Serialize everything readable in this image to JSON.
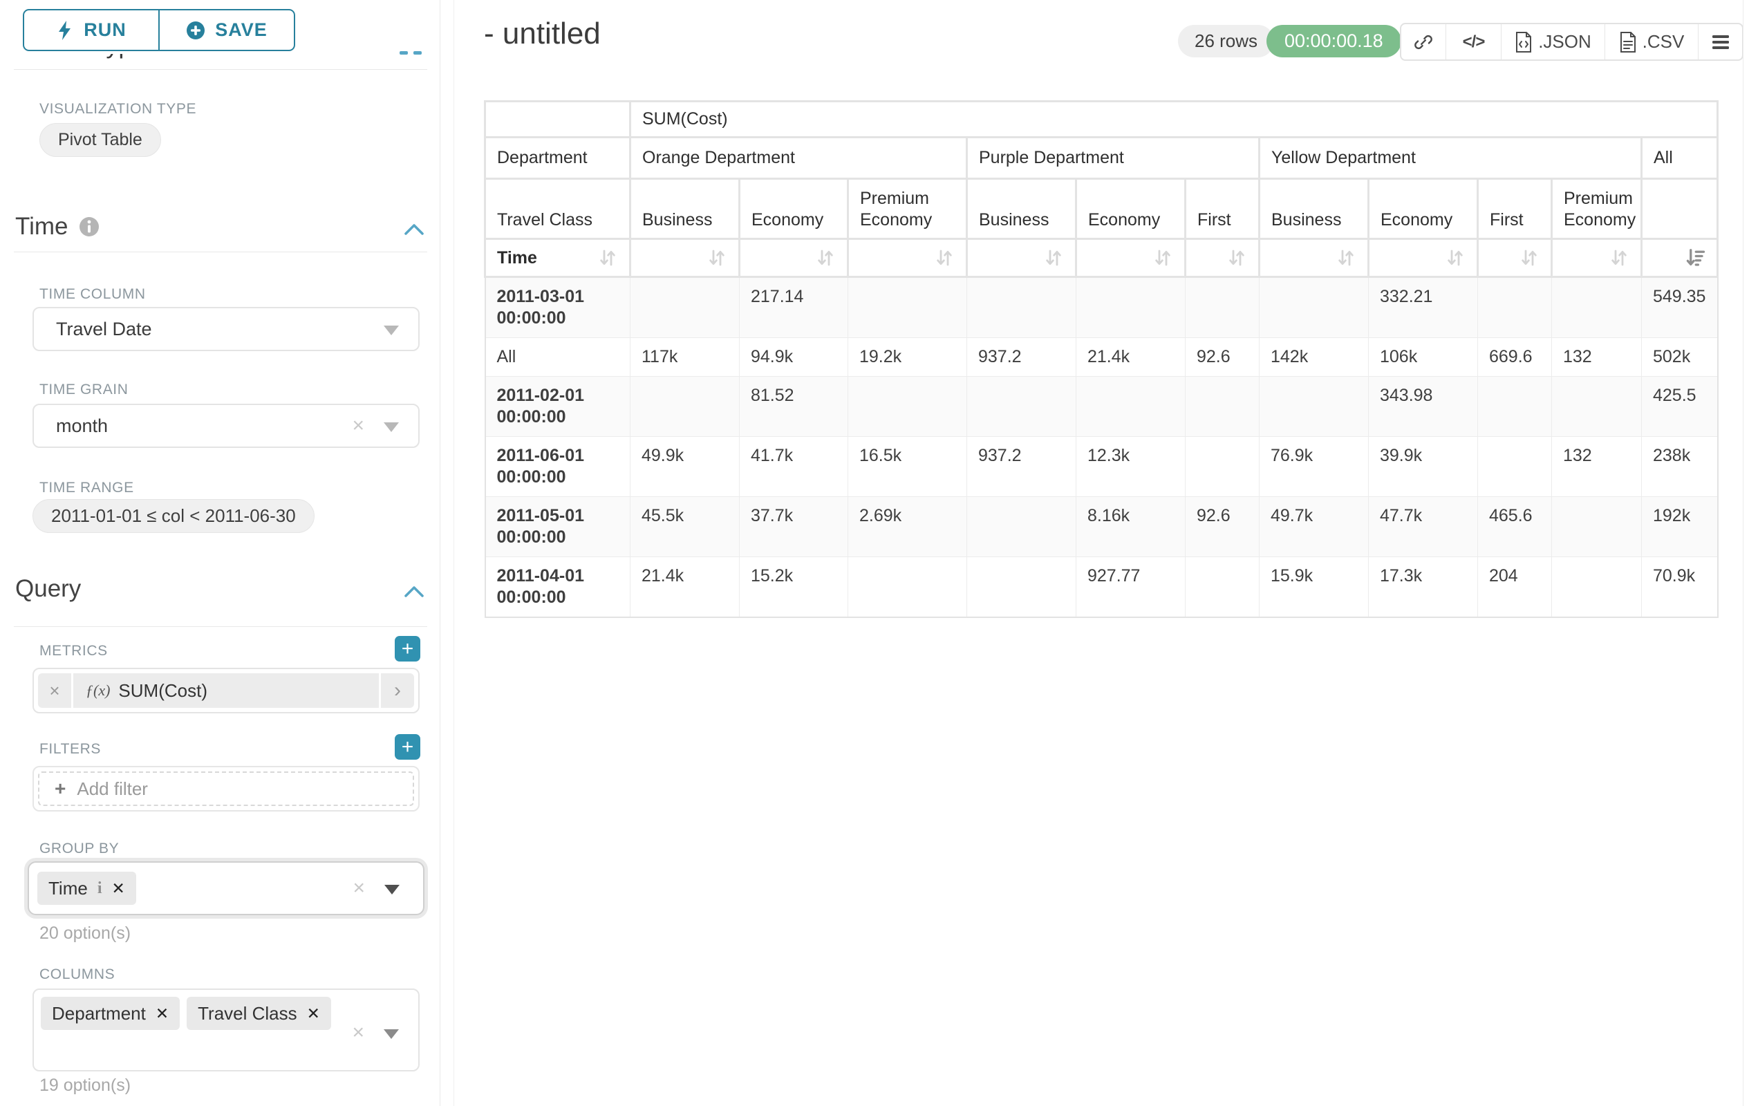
{
  "panel": {
    "run_label": "RUN",
    "save_label": "SAVE",
    "chart_type_heading": "Chart Type",
    "visualization": {
      "label": "VISUALIZATION TYPE",
      "value": "Pivot Table"
    },
    "time": {
      "title": "Time",
      "column_label": "TIME COLUMN",
      "column_value": "Travel Date",
      "grain_label": "TIME GRAIN",
      "grain_value": "month",
      "range_label": "TIME RANGE",
      "range_value": "2011-01-01 ≤ col < 2011-06-30"
    },
    "query": {
      "title": "Query",
      "metrics_label": "METRICS",
      "metric_prefix": "ƒ(x)",
      "metric_value": "SUM(Cost)",
      "filters_label": "FILTERS",
      "add_filter": "Add filter",
      "group_by": {
        "label": "GROUP BY",
        "tags": [
          "Time"
        ],
        "hint": "20 option(s)"
      },
      "columns": {
        "label": "COLUMNS",
        "tags": [
          "Department",
          "Travel Class"
        ],
        "hint": "19 option(s)"
      }
    }
  },
  "header": {
    "title": "- untitled",
    "row_count": "26 rows",
    "timer": "00:00:00.18",
    "export_json_label": ".JSON",
    "export_csv_label": ".CSV"
  },
  "icons": {
    "run": "lightning-bolt",
    "save": "plus-circle",
    "section_info": "info-circle",
    "section_collapse": "chevron-up",
    "select_open": "chevron-down",
    "metric_edit": "chevron-right",
    "share": "link",
    "embed": "code",
    "menu": "hamburger",
    "sort_inactive": "sort-arrows",
    "sort_active": "sort-descending"
  },
  "colors": {
    "accent_teal": "#27809c",
    "plus_button": "#3092b1",
    "timer_green": "#7dbe8c",
    "chevron_blue": "#57a6c6",
    "table_band": "#e3e3e3",
    "row_alt": "#fafafa"
  },
  "table": {
    "metric_header": "SUM(Cost)",
    "department_label": "Department",
    "travel_class_label": "Travel Class",
    "time_label": "Time",
    "groups": [
      {
        "name": "Orange Department",
        "cols": [
          "Business",
          "Economy",
          "Premium Economy"
        ]
      },
      {
        "name": "Purple Department",
        "cols": [
          "Business",
          "Economy",
          "First"
        ]
      },
      {
        "name": "Yellow Department",
        "cols": [
          "Business",
          "Economy",
          "First",
          "Premium Economy"
        ]
      },
      {
        "name": "All",
        "cols": [
          ""
        ]
      }
    ],
    "rows": [
      {
        "label": "2011-03-01 00:00:00",
        "values": [
          "",
          "217.14",
          "",
          "",
          "",
          "",
          "",
          "332.21",
          "",
          "",
          "549.35"
        ]
      },
      {
        "label": "All",
        "values": [
          "117k",
          "94.9k",
          "19.2k",
          "937.2",
          "21.4k",
          "92.6",
          "142k",
          "106k",
          "669.6",
          "132",
          "502k"
        ]
      },
      {
        "label": "2011-02-01 00:00:00",
        "values": [
          "",
          "81.52",
          "",
          "",
          "",
          "",
          "",
          "343.98",
          "",
          "",
          "425.5"
        ]
      },
      {
        "label": "2011-06-01 00:00:00",
        "values": [
          "49.9k",
          "41.7k",
          "16.5k",
          "937.2",
          "12.3k",
          "",
          "76.9k",
          "39.9k",
          "",
          "132",
          "238k"
        ]
      },
      {
        "label": "2011-05-01 00:00:00",
        "values": [
          "45.5k",
          "37.7k",
          "2.69k",
          "",
          "8.16k",
          "92.6",
          "49.7k",
          "47.7k",
          "465.6",
          "",
          "192k"
        ]
      },
      {
        "label": "2011-04-01 00:00:00",
        "values": [
          "21.4k",
          "15.2k",
          "",
          "",
          "927.77",
          "",
          "15.9k",
          "17.3k",
          "204",
          "",
          "70.9k"
        ]
      }
    ]
  }
}
